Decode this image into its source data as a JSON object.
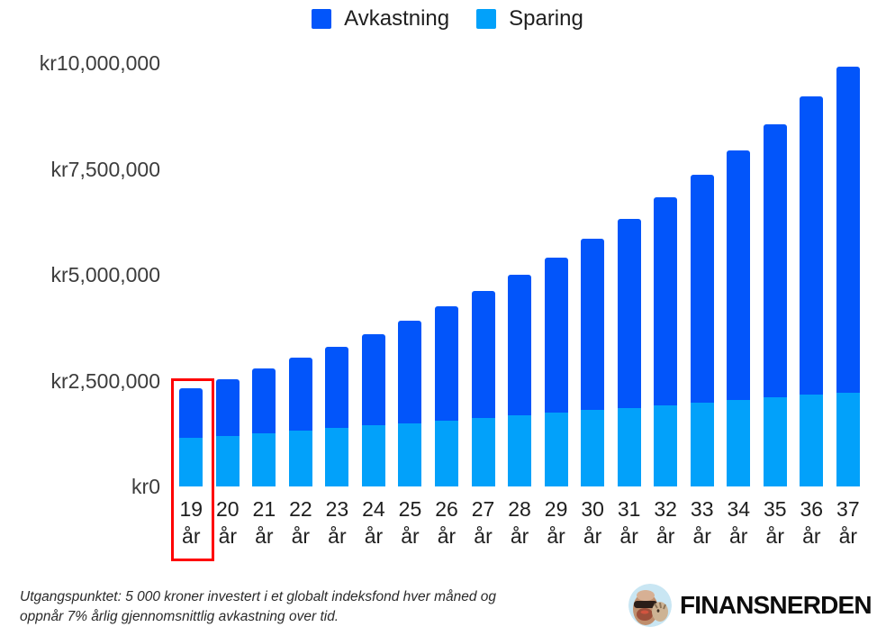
{
  "legend": {
    "items": [
      {
        "label": "Avkastning",
        "color": "#0255fa"
      },
      {
        "label": "Sparing",
        "color": "#02a1fa"
      }
    ]
  },
  "chart_data": {
    "type": "bar",
    "stacked": true,
    "title": "",
    "currency_prefix": "kr",
    "x_unit": "år",
    "ages": [
      19,
      20,
      21,
      22,
      23,
      24,
      25,
      26,
      27,
      28,
      29,
      30,
      31,
      32,
      33,
      34,
      35,
      36,
      37
    ],
    "categories": [
      "19 år",
      "20 år",
      "21 år",
      "22 år",
      "23 år",
      "24 år",
      "25 år",
      "26 år",
      "27 år",
      "28 år",
      "29 år",
      "30 år",
      "31 år",
      "32 år",
      "33 år",
      "34 år",
      "35 år",
      "36 år",
      "37 år"
    ],
    "series": [
      {
        "name": "Avkastning",
        "color": "#0255fa",
        "values": [
          1174000,
          1338000,
          1517000,
          1714000,
          1928000,
          2161000,
          2415000,
          2691000,
          2991000,
          3315000,
          3667000,
          4047000,
          4459000,
          4903000,
          5382000,
          5899000,
          6457000,
          7058000,
          7705000
        ]
      },
      {
        "name": "Sparing",
        "color": "#02a1fa",
        "values": [
          1140000,
          1200000,
          1260000,
          1320000,
          1380000,
          1440000,
          1500000,
          1560000,
          1620000,
          1680000,
          1740000,
          1800000,
          1860000,
          1920000,
          1980000,
          2040000,
          2100000,
          2160000,
          2220000
        ]
      }
    ],
    "totals": [
      2314000,
      2538000,
      2777000,
      3034000,
      3308000,
      3601000,
      3915000,
      4251000,
      4611000,
      4995000,
      5407000,
      5847000,
      6319000,
      6823000,
      7362000,
      7939000,
      8557000,
      9218000,
      9925000
    ],
    "ylim": [
      0,
      10000000
    ],
    "y_ticks": [
      {
        "label": "kr10,000,000",
        "value": 10000000
      },
      {
        "label": "kr7,500,000",
        "value": 7500000
      },
      {
        "label": "kr5,000,000",
        "value": 5000000
      },
      {
        "label": "kr2,500,000",
        "value": 2500000
      },
      {
        "label": "kr0",
        "value": 0
      }
    ],
    "grid": false,
    "legend_position": "top",
    "highlighted_category": "19 år",
    "highlight_color": "#fe0000"
  },
  "footer": {
    "note_line1": "Utgangspunktet: 5 000 kroner investert i et globalt indeksfond hver måned og",
    "note_line2": "oppnår 7% årlig gjennomsnittlig avkastning over tid.",
    "brand_name": "FINANSNERDEN"
  }
}
